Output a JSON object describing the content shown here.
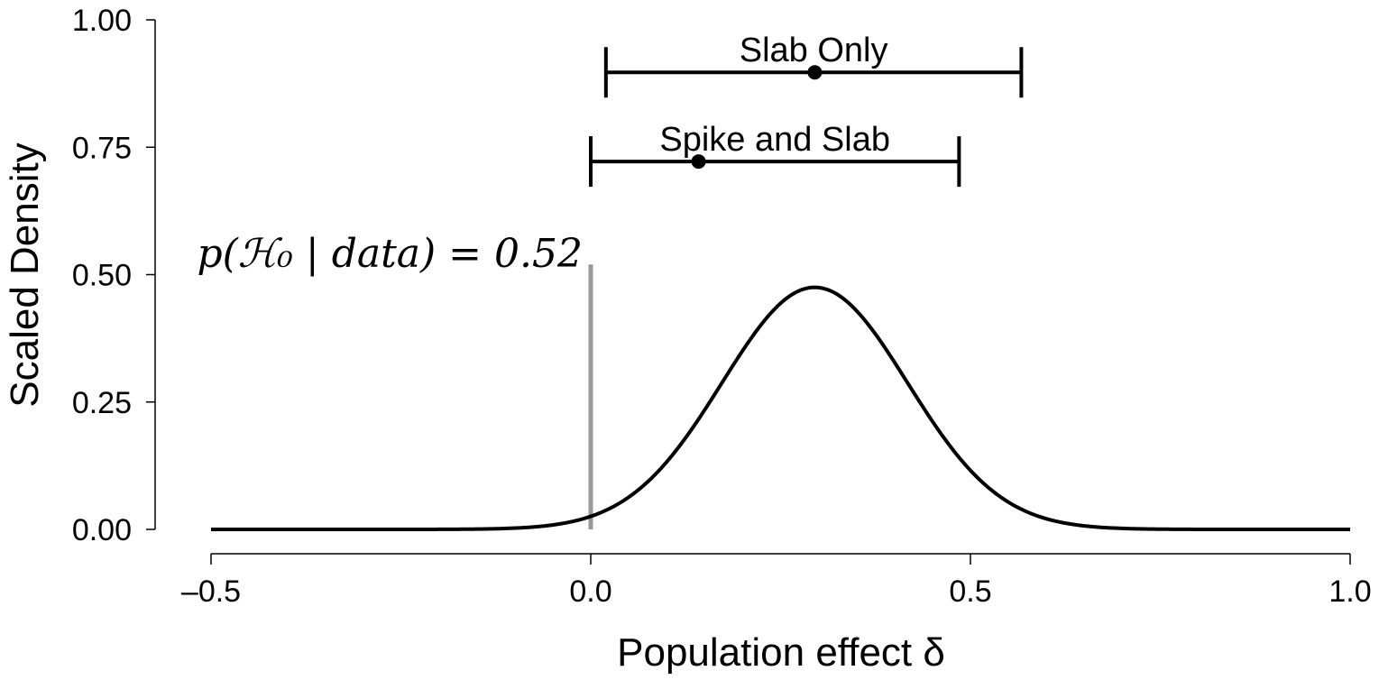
{
  "chart_data": {
    "type": "line",
    "title": "",
    "xlabel": "Population effect δ",
    "ylabel": "Scaled Density",
    "xlim": [
      -0.5,
      1.0
    ],
    "ylim": [
      0,
      1.0
    ],
    "x_ticks": [
      -0.5,
      0.0,
      0.5,
      1.0
    ],
    "x_tick_labels": [
      "–0.5",
      "0.0",
      "0.5",
      "1.0"
    ],
    "y_ticks": [
      0,
      0.25,
      0.5,
      0.75,
      1.0
    ],
    "y_tick_labels": [
      "0.00",
      "0.25",
      "0.50",
      "0.75",
      "1.00"
    ],
    "grid": false,
    "legend": "none",
    "curve": {
      "shape": "normal",
      "mean": 0.295,
      "sd": 0.122,
      "peak": 0.475,
      "color": "#000000"
    },
    "spike": {
      "x": 0.0,
      "height": 0.52,
      "color": "#999999",
      "label": "p(ℋ₀ | data) = 0.52"
    },
    "intervals": [
      {
        "name": "Slab Only",
        "lower": 0.02,
        "point": 0.295,
        "upper": 0.567,
        "y": 0.897
      },
      {
        "name": "Spike and Slab",
        "lower": 0.0,
        "point": 0.142,
        "upper": 0.485,
        "y": 0.722
      }
    ]
  }
}
